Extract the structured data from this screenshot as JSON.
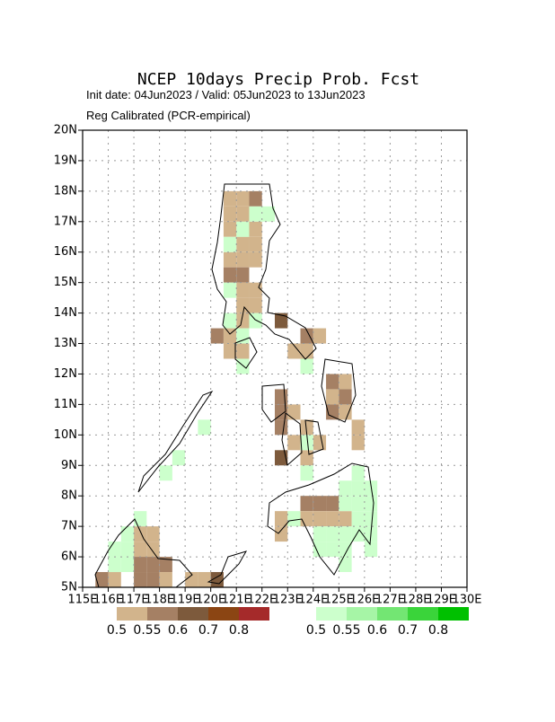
{
  "chart_data": {
    "type": "grid-map",
    "title": "NCEP 10days Precip Prob. Fcst",
    "subtitle": "Init date: 04Jun2023 / Valid: 05Jun2023 to 13Jun2023",
    "note": "Reg Calibrated (PCR-empirical)",
    "xlim": [
      115,
      130
    ],
    "ylim": [
      5,
      20
    ],
    "xticks": [
      {
        "value": 115,
        "label": "115E"
      },
      {
        "value": 116,
        "label": "116E"
      },
      {
        "value": 117,
        "label": "117E"
      },
      {
        "value": 118,
        "label": "118E"
      },
      {
        "value": 119,
        "label": "119E"
      },
      {
        "value": 120,
        "label": "120E"
      },
      {
        "value": 121,
        "label": "121E"
      },
      {
        "value": 122,
        "label": "122E"
      },
      {
        "value": 123,
        "label": "123E"
      },
      {
        "value": 124,
        "label": "124E"
      },
      {
        "value": 125,
        "label": "125E"
      },
      {
        "value": 126,
        "label": "126E"
      },
      {
        "value": 127,
        "label": "127E"
      },
      {
        "value": 128,
        "label": "128E"
      },
      {
        "value": 129,
        "label": "129E"
      },
      {
        "value": 130,
        "label": "130E"
      }
    ],
    "yticks": [
      {
        "value": 5,
        "label": "5N"
      },
      {
        "value": 6,
        "label": "6N"
      },
      {
        "value": 7,
        "label": "7N"
      },
      {
        "value": 8,
        "label": "8N"
      },
      {
        "value": 9,
        "label": "9N"
      },
      {
        "value": 10,
        "label": "10N"
      },
      {
        "value": 11,
        "label": "11N"
      },
      {
        "value": 12,
        "label": "12N"
      },
      {
        "value": 13,
        "label": "13N"
      },
      {
        "value": 14,
        "label": "14N"
      },
      {
        "value": 15,
        "label": "15N"
      },
      {
        "value": 16,
        "label": "16N"
      },
      {
        "value": 17,
        "label": "17N"
      },
      {
        "value": 18,
        "label": "18N"
      },
      {
        "value": 19,
        "label": "19N"
      },
      {
        "value": 20,
        "label": "20N"
      }
    ],
    "grid": true,
    "cell_size": 0.5,
    "dry_scale": {
      "colors": [
        "#d2b48c",
        "#a58064",
        "#7d5a3c",
        "#8b4513",
        "#a52a2a"
      ],
      "labels": [
        0.5,
        0.55,
        0.6,
        0.7,
        0.8
      ]
    },
    "wet_scale": {
      "colors": [
        "#ccffcc",
        "#a6f5a6",
        "#73e673",
        "#3ad43a",
        "#00c000"
      ],
      "labels": [
        0.5,
        0.55,
        0.6,
        0.7,
        0.8
      ]
    },
    "dry_cells": [
      [
        120.5,
        17.5,
        0.5
      ],
      [
        121.0,
        17.5,
        0.5
      ],
      [
        121.5,
        17.5,
        0.55
      ],
      [
        120.5,
        17.0,
        0.5
      ],
      [
        121.0,
        17.0,
        0.5
      ],
      [
        120.5,
        16.5,
        0.5
      ],
      [
        121.0,
        16.5,
        0.5
      ],
      [
        121.5,
        16.5,
        0.5
      ],
      [
        121.0,
        16.0,
        0.5
      ],
      [
        121.5,
        16.0,
        0.5
      ],
      [
        120.5,
        15.5,
        0.5
      ],
      [
        121.0,
        15.5,
        0.5
      ],
      [
        121.5,
        15.5,
        0.5
      ],
      [
        120.5,
        15.0,
        0.55
      ],
      [
        121.0,
        15.0,
        0.55
      ],
      [
        121.0,
        14.5,
        0.5
      ],
      [
        121.5,
        14.5,
        0.5
      ],
      [
        121.5,
        14.0,
        0.5
      ],
      [
        121.0,
        14.0,
        0.5
      ],
      [
        121.0,
        13.5,
        0.5
      ],
      [
        122.5,
        13.5,
        0.6
      ],
      [
        120.0,
        13.0,
        0.55
      ],
      [
        120.5,
        13.0,
        0.5
      ],
      [
        123.5,
        13.0,
        0.55
      ],
      [
        124.0,
        13.0,
        0.5
      ],
      [
        120.5,
        12.5,
        0.5
      ],
      [
        121.0,
        12.5,
        0.5
      ],
      [
        123.0,
        12.5,
        0.5
      ],
      [
        123.5,
        12.5,
        0.5
      ],
      [
        124.5,
        11.5,
        0.55
      ],
      [
        125.0,
        11.5,
        0.5
      ],
      [
        122.5,
        11.0,
        0.55
      ],
      [
        124.5,
        11.0,
        0.5
      ],
      [
        125.0,
        11.0,
        0.55
      ],
      [
        122.5,
        10.5,
        0.55
      ],
      [
        123.0,
        10.5,
        0.5
      ],
      [
        124.5,
        10.5,
        0.55
      ],
      [
        125.0,
        10.5,
        0.5
      ],
      [
        122.5,
        10.0,
        0.55
      ],
      [
        123.5,
        10.0,
        0.5
      ],
      [
        125.5,
        10.0,
        0.5
      ],
      [
        123.0,
        9.5,
        0.5
      ],
      [
        124.0,
        9.5,
        0.5
      ],
      [
        125.5,
        9.5,
        0.5
      ],
      [
        122.5,
        9.0,
        0.6
      ],
      [
        123.5,
        9.0,
        0.5
      ],
      [
        123.5,
        7.5,
        0.55
      ],
      [
        124.0,
        7.5,
        0.55
      ],
      [
        124.5,
        7.5,
        0.55
      ],
      [
        122.5,
        7.0,
        0.5
      ],
      [
        123.5,
        7.0,
        0.5
      ],
      [
        124.0,
        7.0,
        0.5
      ],
      [
        124.5,
        7.0,
        0.5
      ],
      [
        125.0,
        7.0,
        0.5
      ],
      [
        122.5,
        6.5,
        0.5
      ],
      [
        117.0,
        6.5,
        0.5
      ],
      [
        117.5,
        6.5,
        0.5
      ],
      [
        117.0,
        6.0,
        0.5
      ],
      [
        117.5,
        6.0,
        0.5
      ],
      [
        117.0,
        5.5,
        0.55
      ],
      [
        117.5,
        5.5,
        0.55
      ],
      [
        118.0,
        5.5,
        0.55
      ],
      [
        115.5,
        5.0,
        0.55
      ],
      [
        116.0,
        5.0,
        0.5
      ],
      [
        117.0,
        5.0,
        0.55
      ],
      [
        117.5,
        5.0,
        0.55
      ],
      [
        118.0,
        5.0,
        0.5
      ],
      [
        119.0,
        5.0,
        0.5
      ],
      [
        119.5,
        5.0,
        0.5
      ],
      [
        120.0,
        5.0,
        0.6
      ]
    ],
    "wet_cells": [
      [
        121.5,
        17.0,
        0.5
      ],
      [
        122.0,
        17.0,
        0.5
      ],
      [
        120.5,
        16.0,
        0.5
      ],
      [
        121.0,
        16.5,
        0.5
      ],
      [
        120.5,
        14.5,
        0.5
      ],
      [
        120.5,
        13.5,
        0.5
      ],
      [
        121.0,
        13.0,
        0.5
      ],
      [
        121.5,
        13.5,
        0.5
      ],
      [
        121.0,
        12.0,
        0.5
      ],
      [
        123.5,
        12.0,
        0.5
      ],
      [
        123.5,
        9.5,
        0.5
      ],
      [
        123.5,
        8.5,
        0.5
      ],
      [
        125.5,
        8.5,
        0.5
      ],
      [
        125.0,
        8.0,
        0.5
      ],
      [
        125.5,
        8.0,
        0.5
      ],
      [
        126.0,
        8.0,
        0.5
      ],
      [
        125.0,
        7.5,
        0.5
      ],
      [
        125.5,
        7.5,
        0.5
      ],
      [
        126.0,
        7.5,
        0.5
      ],
      [
        123.0,
        7.0,
        0.5
      ],
      [
        125.5,
        7.0,
        0.5
      ],
      [
        126.0,
        7.0,
        0.5
      ],
      [
        124.0,
        6.5,
        0.5
      ],
      [
        124.5,
        6.5,
        0.5
      ],
      [
        125.0,
        6.5,
        0.5
      ],
      [
        125.5,
        6.5,
        0.5
      ],
      [
        126.0,
        6.5,
        0.5
      ],
      [
        124.0,
        6.0,
        0.5
      ],
      [
        124.5,
        6.0,
        0.5
      ],
      [
        125.0,
        6.0,
        0.5
      ],
      [
        126.0,
        6.0,
        0.5
      ],
      [
        125.0,
        5.5,
        0.5
      ],
      [
        119.5,
        10.0,
        0.5
      ],
      [
        118.5,
        9.0,
        0.5
      ],
      [
        118.0,
        8.5,
        0.5
      ],
      [
        117.0,
        7.0,
        0.5
      ],
      [
        116.5,
        6.5,
        0.5
      ],
      [
        116.0,
        6.0,
        0.5
      ],
      [
        116.5,
        6.0,
        0.5
      ],
      [
        116.0,
        5.5,
        0.5
      ],
      [
        116.5,
        5.5,
        0.5
      ]
    ]
  }
}
